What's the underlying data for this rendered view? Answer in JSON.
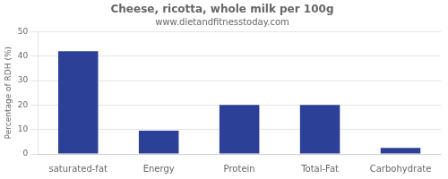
{
  "chart_data": {
    "type": "bar",
    "title": "Cheese, ricotta, whole milk per 100g",
    "subtitle": "www.dietandfitnesstoday.com",
    "categories": [
      "saturated-fat",
      "Energy",
      "Protein",
      "Total-Fat",
      "Carbohydrate"
    ],
    "values": [
      42,
      9.5,
      20,
      20,
      2.5
    ],
    "color": "#2b4096",
    "ylabel": "Percentage of RDH (%)",
    "ylim": [
      0,
      50
    ],
    "yticks": [
      0,
      10,
      20,
      30,
      40,
      50
    ],
    "grid": true
  }
}
